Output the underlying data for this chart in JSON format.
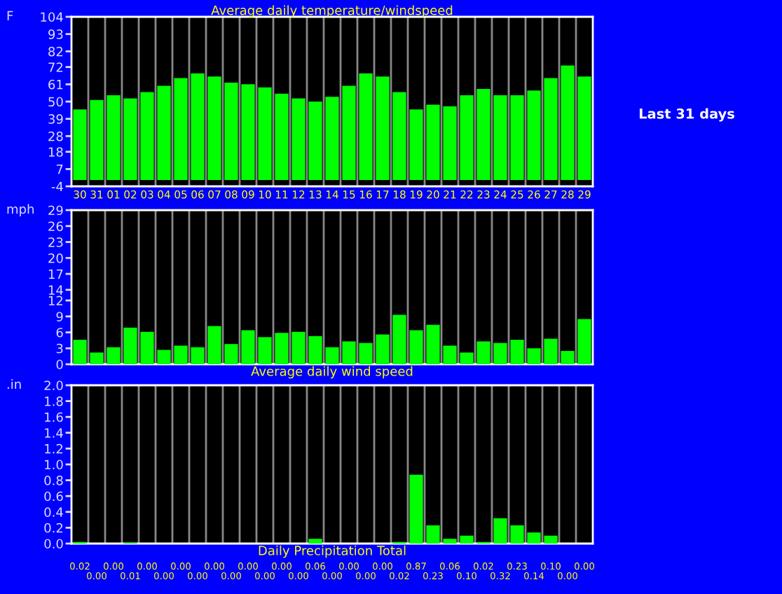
{
  "chart_data": [
    {
      "type": "bar",
      "title": "Average daily temperature/windspeed",
      "ylabel": "F",
      "annotations": [
        "Last 31 days"
      ],
      "categories": [
        "30",
        "31",
        "01",
        "02",
        "03",
        "04",
        "05",
        "06",
        "07",
        "08",
        "09",
        "10",
        "11",
        "12",
        "13",
        "14",
        "15",
        "16",
        "17",
        "18",
        "19",
        "20",
        "21",
        "22",
        "23",
        "24",
        "25",
        "26",
        "27",
        "28",
        "29"
      ],
      "values": [
        45,
        51,
        54,
        52,
        56,
        60,
        65,
        68,
        66,
        62,
        61,
        59,
        55,
        52,
        50,
        53,
        60,
        68,
        66,
        56,
        45,
        48,
        47,
        54,
        58,
        54,
        54,
        57,
        65,
        73,
        66
      ],
      "color": "#00ff00",
      "ylim": [
        -4,
        104
      ],
      "yticks": [
        -4,
        7,
        18,
        28,
        39,
        50,
        61,
        72,
        82,
        93,
        104
      ],
      "grid": "x"
    },
    {
      "type": "bar",
      "xlabel": "Average daily wind speed",
      "ylabel": "mph",
      "categories": [
        "30",
        "31",
        "01",
        "02",
        "03",
        "04",
        "05",
        "06",
        "07",
        "08",
        "09",
        "10",
        "11",
        "12",
        "13",
        "14",
        "15",
        "16",
        "17",
        "18",
        "19",
        "20",
        "21",
        "22",
        "23",
        "24",
        "25",
        "26",
        "27",
        "28",
        "29"
      ],
      "values": [
        4.6,
        2.2,
        3.2,
        6.9,
        6.1,
        2.7,
        3.5,
        3.2,
        7.2,
        3.8,
        6.4,
        5.1,
        5.9,
        6.1,
        5.3,
        3.2,
        4.3,
        4.0,
        5.6,
        9.3,
        6.4,
        7.4,
        3.5,
        2.2,
        4.3,
        4.0,
        4.6,
        3.0,
        4.8,
        2.5,
        8.5
      ],
      "color": "#00ff00",
      "ylim": [
        0,
        29
      ],
      "yticks": [
        0,
        3,
        6,
        9,
        12,
        14,
        17,
        20,
        23,
        26,
        29
      ],
      "grid": "x",
      "tick_labels": "y"
    },
    {
      "type": "bar",
      "xlabel": "Daily Precipitation Total",
      "ylabel": ".in",
      "categories": [
        "30",
        "31",
        "01",
        "02",
        "03",
        "04",
        "05",
        "06",
        "07",
        "08",
        "09",
        "10",
        "11",
        "12",
        "13",
        "14",
        "15",
        "16",
        "17",
        "18",
        "19",
        "20",
        "21",
        "22",
        "23",
        "24",
        "25",
        "26",
        "27",
        "28",
        "29"
      ],
      "values": [
        0.02,
        0.0,
        0.0,
        0.01,
        0.0,
        0.0,
        0.0,
        0.0,
        0.0,
        0.0,
        0.0,
        0.0,
        0.0,
        0.0,
        0.06,
        0.0,
        0.0,
        0.0,
        0.0,
        0.02,
        0.87,
        0.23,
        0.06,
        0.1,
        0.02,
        0.32,
        0.23,
        0.14,
        0.1,
        0.0,
        0.0
      ],
      "value_labels": [
        "0.02",
        "0.00",
        "0.00",
        "0.01",
        "0.00",
        "0.00",
        "0.00",
        "0.00",
        "0.00",
        "0.00",
        "0.00",
        "0.00",
        "0.00",
        "0.00",
        "0.06",
        "0.00",
        "0.00",
        "0.00",
        "0.00",
        "0.02",
        "0.87",
        "0.23",
        "0.06",
        "0.10",
        "0.02",
        "0.32",
        "0.23",
        "0.14",
        "0.10",
        "0.00",
        "0.00"
      ],
      "color": "#00ff00",
      "ylim": [
        0,
        2.0
      ],
      "yticks": [
        {
          "value": 0,
          "label": "0.0"
        },
        {
          "value": 0.2,
          "label": "0.2"
        },
        {
          "value": 0.4,
          "label": "0.4"
        },
        {
          "value": 0.6,
          "label": "0.6"
        },
        {
          "value": 0.8,
          "label": "0.8"
        },
        {
          "value": 1.0,
          "label": "1.0"
        },
        {
          "value": 1.2,
          "label": "1.2"
        },
        {
          "value": 1.4,
          "label": "1.4"
        },
        {
          "value": 1.6,
          "label": "1.6"
        },
        {
          "value": 1.8,
          "label": "1.8"
        },
        {
          "value": 2.0,
          "label": "2.0"
        }
      ],
      "grid": "x",
      "tick_labels": "y"
    }
  ]
}
